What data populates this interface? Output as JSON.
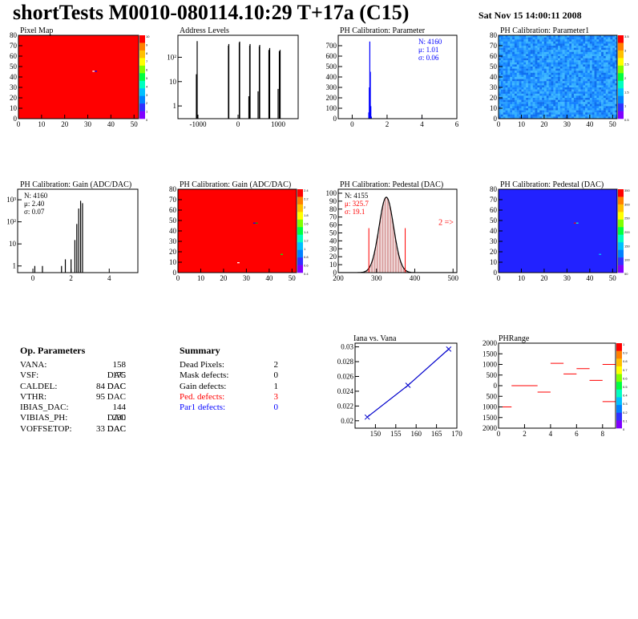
{
  "header": {
    "title": "shortTests M0010-080114.10:29 T+17a (C15)",
    "date": "Sat Nov 15 14:00:11 2008"
  },
  "op_params": {
    "heading": "Op. Parameters",
    "rows": [
      {
        "name": "VANA:",
        "value": "158 DAC"
      },
      {
        "name": "VSF:",
        "value": "175 DAC"
      },
      {
        "name": "CALDEL:",
        "value": "84 DAC"
      },
      {
        "name": "VTHR:",
        "value": "95 DAC"
      },
      {
        "name": "IBIAS_DAC:",
        "value": "144 DAC"
      },
      {
        "name": "VIBIAS_PH:",
        "value": "230 DAC"
      },
      {
        "name": "VOFFSETOP:",
        "value": "33 DAC"
      }
    ]
  },
  "summary": {
    "heading": "Summary",
    "rows": [
      {
        "name": "Dead Pixels:",
        "value": "2",
        "color": "#000000"
      },
      {
        "name": "Mask defects:",
        "value": "0",
        "color": "#000000"
      },
      {
        "name": "Gain defects:",
        "value": "1",
        "color": "#000000"
      },
      {
        "name": "Ped. defects:",
        "value": "3",
        "color": "#ff0000"
      },
      {
        "name": "Par1 defects:",
        "value": "0",
        "color": "#0000ff"
      }
    ]
  },
  "chart_data": [
    {
      "id": "pixel-map",
      "type": "heatmap",
      "title": "Pixel Map",
      "xlim": [
        0,
        52
      ],
      "ylim": [
        0,
        80
      ],
      "xticks": [
        0,
        10,
        20,
        30,
        40,
        50
      ],
      "yticks": [
        0,
        10,
        20,
        30,
        40,
        50,
        60,
        70,
        80
      ],
      "fill": "#ff0000",
      "special": [
        {
          "x": 32,
          "y": 45,
          "color": "#ffffff"
        },
        {
          "x": 33,
          "y": 45,
          "color": "#0000ff"
        }
      ],
      "zlim": [
        0,
        10
      ],
      "zticks": [
        "10",
        "9",
        "8",
        "7",
        "6",
        "5",
        "4",
        "3",
        "2",
        "1",
        "0"
      ]
    },
    {
      "id": "address-levels",
      "type": "bar",
      "title": "Address Levels",
      "xlim": [
        -1500,
        1500
      ],
      "log_y": true,
      "xticks": [
        {
          "v": -1000,
          "t": "-1000"
        },
        {
          "v": 0,
          "t": "0"
        },
        {
          "v": 1000,
          "t": "1000"
        }
      ],
      "yticks": [
        {
          "v": 1,
          "t": "1"
        },
        {
          "v": 10,
          "t": "10"
        },
        {
          "v": 100,
          "t": "10²"
        }
      ],
      "ylim": [
        0.3,
        800
      ],
      "peaks": [
        {
          "x": -1040,
          "h": 20
        },
        {
          "x": -1020,
          "h": 460
        },
        {
          "x": -240,
          "h": 300
        },
        {
          "x": -230,
          "h": 350
        },
        {
          "x": 30,
          "h": 400
        },
        {
          "x": 40,
          "h": 440
        },
        {
          "x": 270,
          "h": 2.5
        },
        {
          "x": 290,
          "h": 300
        },
        {
          "x": 300,
          "h": 350
        },
        {
          "x": 500,
          "h": 4
        },
        {
          "x": 530,
          "h": 280
        },
        {
          "x": 540,
          "h": 320
        },
        {
          "x": 770,
          "h": 200
        },
        {
          "x": 790,
          "h": 240
        },
        {
          "x": 1000,
          "h": 5
        },
        {
          "x": 1030,
          "h": 180
        },
        {
          "x": 1050,
          "h": 200
        }
      ]
    },
    {
      "id": "ph-cal-param",
      "type": "bar",
      "title": "PH Calibration: Parameter",
      "xlim": [
        -0.8,
        6
      ],
      "ylim": [
        0,
        800
      ],
      "xticks": [
        0,
        2,
        4,
        6
      ],
      "yticks": [
        0,
        100,
        200,
        300,
        400,
        500,
        600,
        700
      ],
      "peaks": [
        {
          "x": 0.95,
          "h": 60
        },
        {
          "x": 0.98,
          "h": 300
        },
        {
          "x": 1.01,
          "h": 740
        },
        {
          "x": 1.04,
          "h": 450
        },
        {
          "x": 1.07,
          "h": 120
        },
        {
          "x": 1.1,
          "h": 20
        },
        {
          "x": 4.0,
          "h": 10
        }
      ],
      "stats": [
        {
          "t": "N: 4160",
          "c": "#0000ff"
        },
        {
          "t": "μ: 1.01",
          "c": "#0000ff"
        },
        {
          "t": "σ: 0.06",
          "c": "#0000ff"
        }
      ]
    },
    {
      "id": "ph-cal-param1",
      "type": "heatmap",
      "title": "PH Calibration: Parameter1",
      "xlim": [
        0,
        52
      ],
      "ylim": [
        0,
        80
      ],
      "xticks": [
        0,
        10,
        20,
        30,
        40,
        50
      ],
      "yticks": [
        0,
        10,
        20,
        30,
        40,
        50,
        60,
        70,
        80
      ],
      "pattern": "noise",
      "zticks": [
        "3.5",
        "3",
        "2.5",
        "2",
        "1.5",
        "1",
        "0.5"
      ]
    },
    {
      "id": "ph-cal-gain-hist",
      "type": "bar",
      "title": "PH Calibration: Gain (ADC/DAC)",
      "xlim": [
        -0.8,
        5.5
      ],
      "log_y": true,
      "ylim": [
        0.5,
        3000
      ],
      "xticks": [
        0,
        2,
        4
      ],
      "yticks": [
        {
          "v": 1,
          "t": "1"
        },
        {
          "v": 10,
          "t": "10"
        },
        {
          "v": 100,
          "t": "10²"
        },
        {
          "v": 1000,
          "t": "10³"
        }
      ],
      "peaks": [
        {
          "x": 0.1,
          "h": 1
        },
        {
          "x": 0.5,
          "h": 1
        },
        {
          "x": 1.5,
          "h": 1
        },
        {
          "x": 1.7,
          "h": 2
        },
        {
          "x": 2.0,
          "h": 2
        },
        {
          "x": 2.2,
          "h": 15
        },
        {
          "x": 2.3,
          "h": 80
        },
        {
          "x": 2.4,
          "h": 400
        },
        {
          "x": 2.5,
          "h": 900
        },
        {
          "x": 2.6,
          "h": 700
        }
      ],
      "stats": [
        {
          "t": "N: 4160",
          "c": "#000000"
        },
        {
          "t": "μ: 2.40",
          "c": "#000000"
        },
        {
          "t": "σ: 0.07",
          "c": "#000000"
        }
      ]
    },
    {
      "id": "ph-cal-gain-map",
      "type": "heatmap",
      "title": "PH Calibration: Gain (ADC/DAC)",
      "xlim": [
        0,
        52
      ],
      "ylim": [
        0,
        80
      ],
      "xticks": [
        0,
        10,
        20,
        30,
        40,
        50
      ],
      "yticks": [
        0,
        10,
        20,
        30,
        40,
        50,
        60,
        70,
        80
      ],
      "fill": "#ff0000",
      "special": [
        {
          "x": 33,
          "y": 47,
          "color": "#0000ff"
        },
        {
          "x": 34,
          "y": 47,
          "color": "#00aa00"
        },
        {
          "x": 45,
          "y": 17,
          "color": "#00ff00"
        },
        {
          "x": 26,
          "y": 9,
          "color": "#ffffff"
        }
      ],
      "zticks": [
        "2.4",
        "2.2",
        "2",
        "1.8",
        "1.6",
        "1.4",
        "1.2",
        "1",
        "0.8",
        "0.6",
        "0.4"
      ]
    },
    {
      "id": "ph-cal-pedestal-hist",
      "type": "bar",
      "title": "PH Calibration: Pedestal (DAC)",
      "xlim": [
        200,
        510
      ],
      "ylim": [
        0,
        105
      ],
      "xticks": [
        200,
        300,
        400,
        500
      ],
      "yticks": [
        0,
        10,
        20,
        30,
        40,
        50,
        60,
        70,
        80,
        90,
        100
      ],
      "gauss": {
        "mu": 325.7,
        "sigma": 19.1,
        "amp": 95
      },
      "cutlines": [
        {
          "x": 280,
          "h": 56
        },
        {
          "x": 375,
          "h": 56
        }
      ],
      "stats": [
        {
          "t": "N: 4155",
          "c": "#000000"
        },
        {
          "t": "μ: 325.7",
          "c": "#ff0000"
        },
        {
          "t": "σ: 19.1",
          "c": "#ff0000"
        }
      ],
      "annotation": "2 =>"
    },
    {
      "id": "ph-cal-pedestal-map",
      "type": "heatmap",
      "title": "PH Calibration: Pedestal (DAC)",
      "xlim": [
        0,
        52
      ],
      "ylim": [
        0,
        80
      ],
      "xticks": [
        0,
        10,
        20,
        30,
        40,
        50
      ],
      "yticks": [
        0,
        10,
        20,
        30,
        40,
        50,
        60,
        70,
        80
      ],
      "fill": "#2222ff",
      "special": [
        {
          "x": 33,
          "y": 47,
          "color": "#ff0000"
        },
        {
          "x": 34,
          "y": 47,
          "color": "#00ffcc"
        },
        {
          "x": 44,
          "y": 17,
          "color": "#00ccff"
        }
      ],
      "zticks": [
        "350",
        "300",
        "250",
        "200",
        "150",
        "100",
        "50"
      ]
    },
    {
      "id": "iana-vana",
      "type": "line",
      "title": "Iana vs. Vana",
      "xlim": [
        145,
        170
      ],
      "ylim": [
        0.019,
        0.0305
      ],
      "xticks": [
        150,
        155,
        160,
        165,
        170
      ],
      "yticks": [
        0.02,
        0.022,
        0.024,
        0.026,
        0.028,
        0.03
      ],
      "x": [
        148,
        158,
        168
      ],
      "y": [
        0.0205,
        0.0248,
        0.0297
      ]
    },
    {
      "id": "ph-range",
      "type": "heatmap",
      "title": "PHRange",
      "xlim": [
        0,
        9
      ],
      "ylim": [
        -2000,
        2000
      ],
      "xticks": [
        0,
        2,
        4,
        6,
        8
      ],
      "yticks": [
        {
          "v": -2000,
          "t": "2000"
        },
        {
          "v": -1500,
          "t": "1500"
        },
        {
          "v": -1000,
          "t": "1000"
        },
        {
          "v": -500,
          "t": "500"
        },
        {
          "v": 0,
          "t": "0"
        },
        {
          "v": 500,
          "t": "500"
        },
        {
          "v": 1000,
          "t": "1000"
        },
        {
          "v": 1500,
          "t": "1500"
        },
        {
          "v": 2000,
          "t": "2000"
        }
      ],
      "segments": [
        {
          "x0": 0,
          "x1": 1,
          "y": -1000
        },
        {
          "x0": 1,
          "x1": 3,
          "y": 0
        },
        {
          "x0": 3,
          "x1": 4,
          "y": -300
        },
        {
          "x0": 4,
          "x1": 5,
          "y": 1050
        },
        {
          "x0": 5,
          "x1": 6,
          "y": 550
        },
        {
          "x0": 6,
          "x1": 7,
          "y": 800
        },
        {
          "x0": 7,
          "x1": 8,
          "y": 250
        },
        {
          "x0": 8,
          "x1": 9,
          "y": 1000
        },
        {
          "x0": 8,
          "x1": 9,
          "y": -750
        }
      ],
      "zticks": [
        "1",
        "0.9",
        "0.8",
        "0.7",
        "0.6",
        "0.5",
        "0.4",
        "0.3",
        "0.2",
        "0.1",
        "0"
      ]
    }
  ]
}
